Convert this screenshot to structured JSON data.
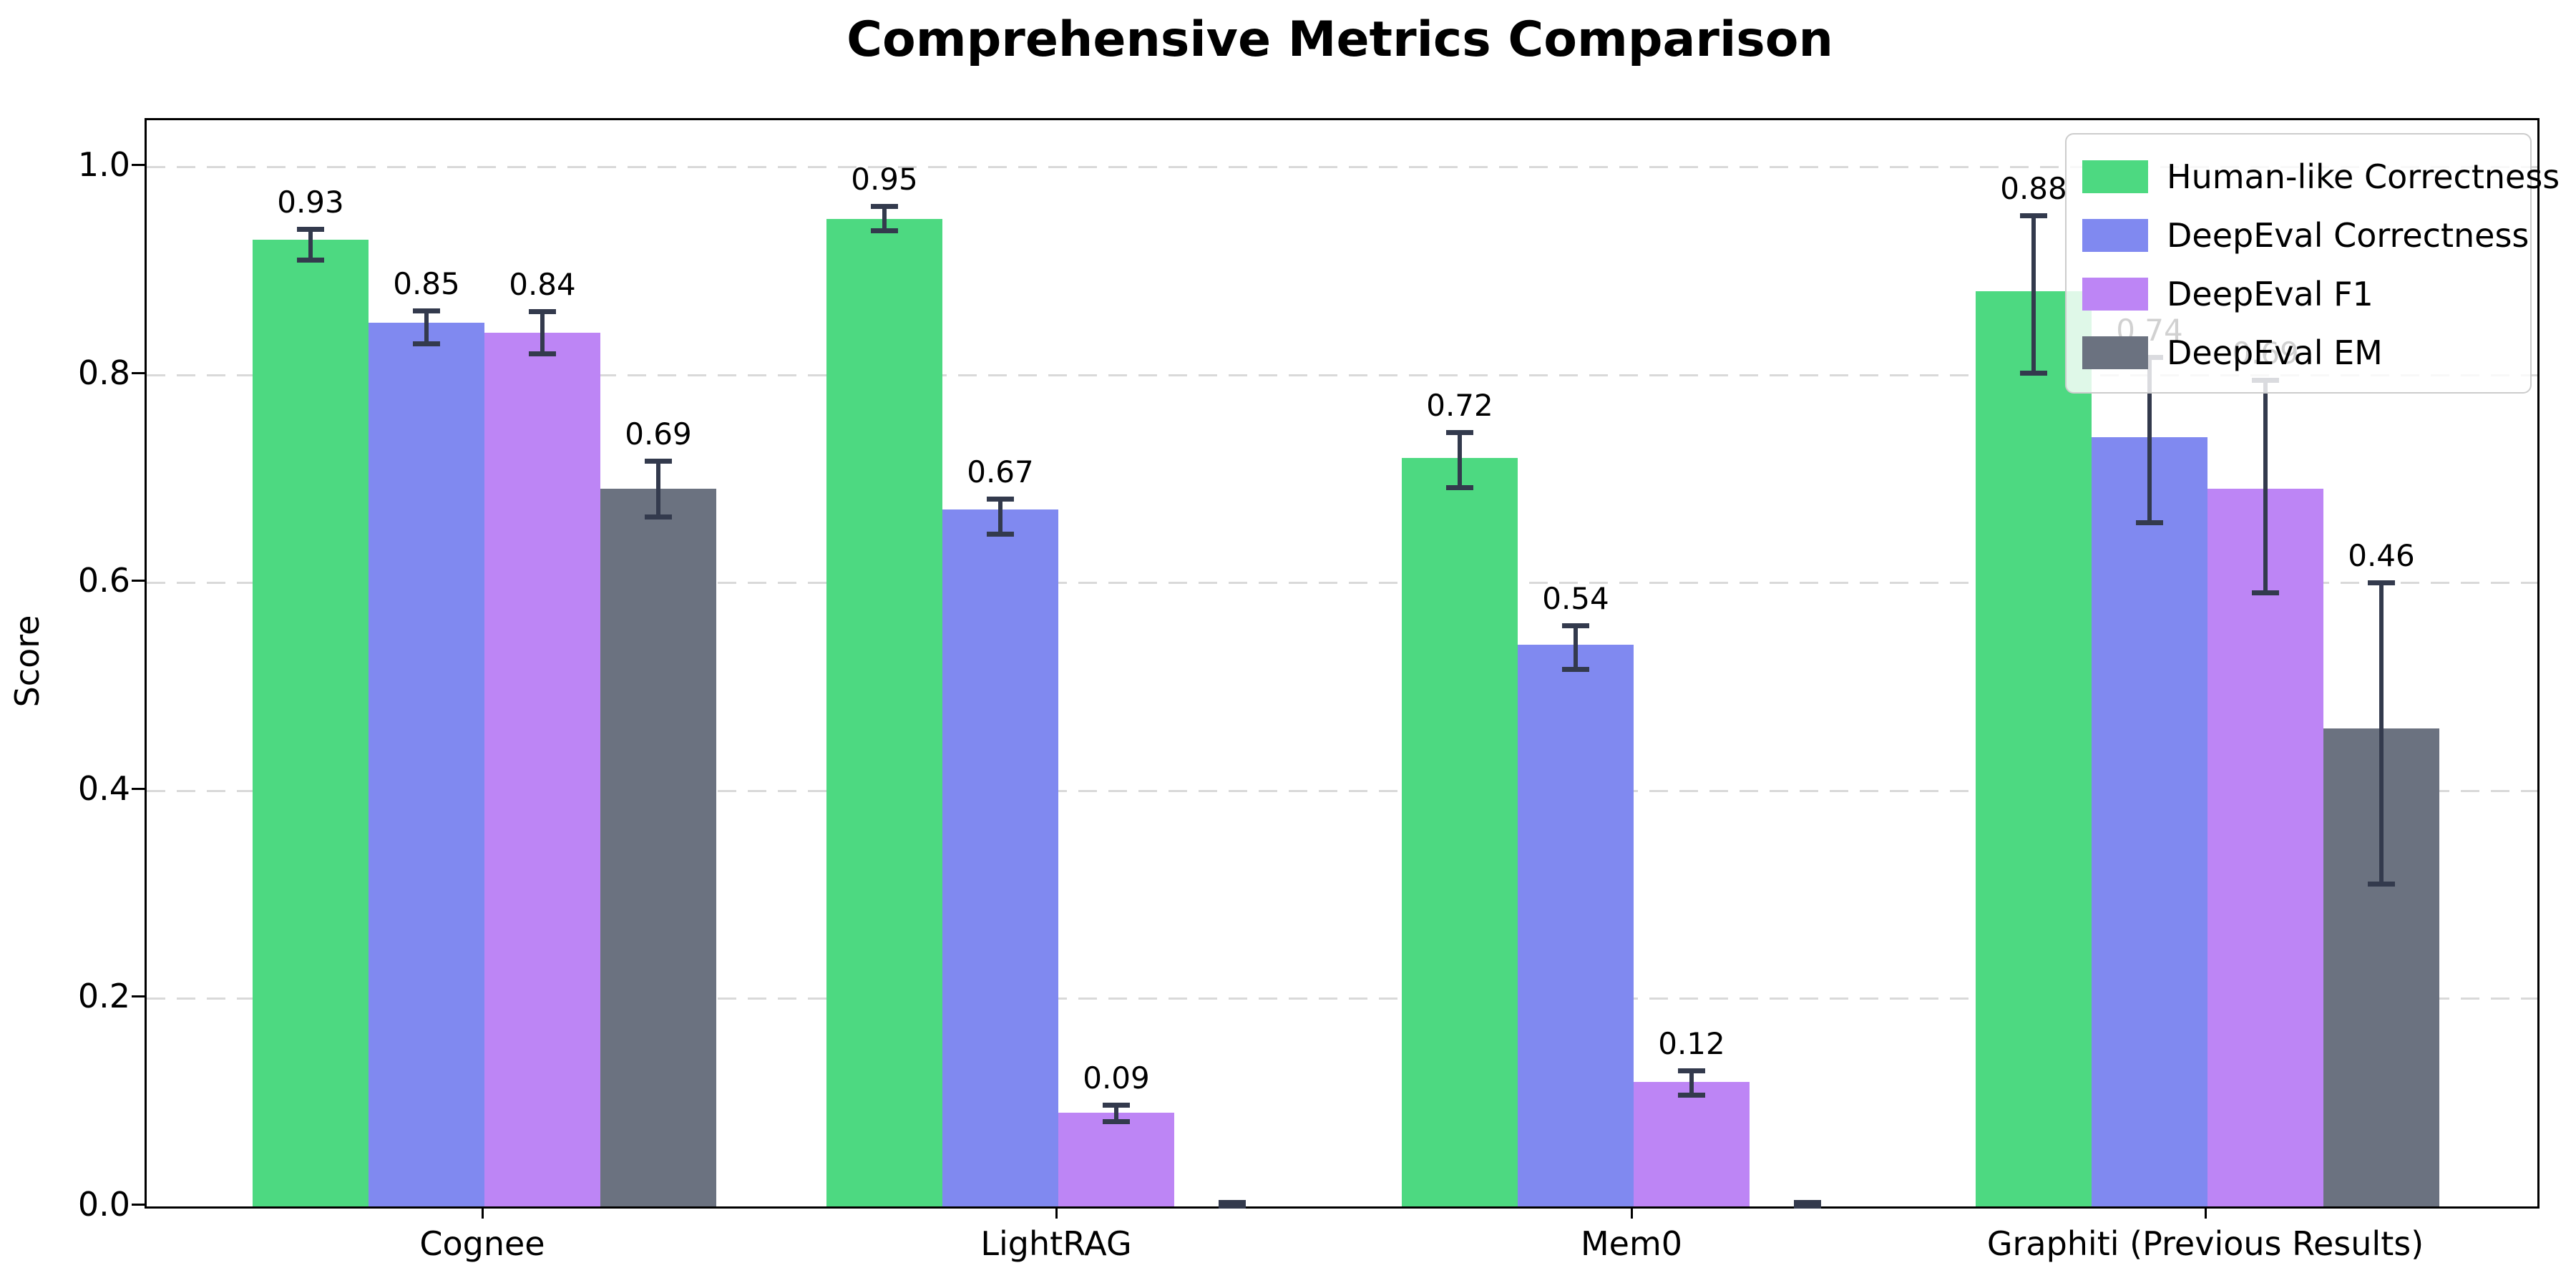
{
  "chart_data": {
    "type": "bar",
    "title": "Comprehensive Metrics Comparison",
    "xlabel": "",
    "ylabel": "Score",
    "categories": [
      "Cognee",
      "LightRAG",
      "Mem0",
      "Graphiti (Previous Results)"
    ],
    "yticks": [
      "0.0",
      "0.2",
      "0.4",
      "0.6",
      "0.8",
      "1.0"
    ],
    "ylim": [
      0,
      1.045
    ],
    "grid": "horizontal-dashed",
    "legend_position": "upper-right",
    "errorbar_color": "#333a4d",
    "grid_color": "#d9d9d9",
    "series": [
      {
        "name": "Human-like Correctness",
        "color": "#4dd981",
        "values": [
          0.93,
          0.95,
          0.72,
          0.88
        ],
        "labels": [
          "0.93",
          "0.95",
          "0.72",
          "0.88"
        ],
        "err": [
          [
            0.91,
            0.94
          ],
          [
            0.938,
            0.962
          ],
          [
            0.691,
            0.745
          ],
          [
            0.801,
            0.953
          ]
        ]
      },
      {
        "name": "DeepEval Correctness",
        "color": "#8089f0",
        "values": [
          0.85,
          0.67,
          0.54,
          0.74
        ],
        "labels": [
          "0.85",
          "0.67",
          "0.54",
          "0.74"
        ],
        "err": [
          [
            0.829,
            0.862
          ],
          [
            0.646,
            0.681
          ],
          [
            0.516,
            0.559
          ],
          [
            0.657,
            0.817
          ]
        ]
      },
      {
        "name": "DeepEval F1",
        "color": "#bd85f5",
        "values": [
          0.84,
          0.09,
          0.12,
          0.69
        ],
        "labels": [
          "0.84",
          "0.09",
          "0.12",
          "0.69"
        ],
        "err": [
          [
            0.82,
            0.861
          ],
          [
            0.081,
            0.098
          ],
          [
            0.107,
            0.131
          ],
          [
            0.59,
            0.795
          ]
        ]
      },
      {
        "name": "DeepEval EM",
        "color": "#6b7280",
        "values": [
          0.69,
          0.0,
          0.0,
          0.46
        ],
        "labels": [
          "0.69",
          "",
          "",
          "0.46"
        ],
        "err": [
          [
            0.663,
            0.717
          ],
          [
            0.0,
            0.004
          ],
          [
            0.0,
            0.004
          ],
          [
            0.31,
            0.6
          ]
        ]
      }
    ]
  }
}
